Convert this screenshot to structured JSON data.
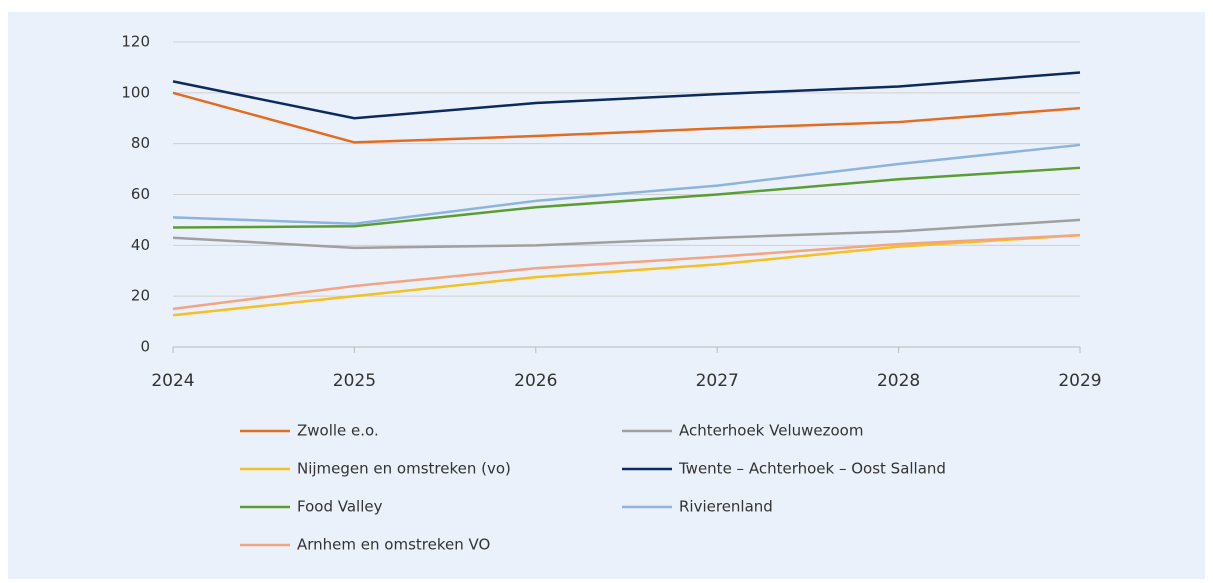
{
  "chart_data": {
    "type": "line",
    "categories": [
      "2024",
      "2025",
      "2026",
      "2027",
      "2028",
      "2029"
    ],
    "ylim": [
      0,
      120
    ],
    "yticks": [
      0,
      20,
      40,
      60,
      80,
      100,
      120
    ],
    "grid": true,
    "series": [
      {
        "name": "Zwolle e.o.",
        "color": "#e36c1e",
        "values": [
          100,
          80.5,
          83,
          86,
          88.5,
          94
        ]
      },
      {
        "name": "Achterhoek Veluwezoom",
        "color": "#a0a0a0",
        "values": [
          43,
          39,
          40,
          43,
          45.5,
          50
        ]
      },
      {
        "name": "Nijmegen en omstreken (vo)",
        "color": "#f5c020",
        "values": [
          12.5,
          20,
          27.5,
          32.5,
          39.5,
          44
        ]
      },
      {
        "name": "Twente – Achterhoek – Oost Salland",
        "color": "#0c2a5e",
        "values": [
          104.5,
          90,
          96,
          99.5,
          102.5,
          108
        ]
      },
      {
        "name": "Food Valley",
        "color": "#5a9e32",
        "values": [
          47,
          47.5,
          55,
          60,
          66,
          70.5
        ]
      },
      {
        "name": "Rivierenland",
        "color": "#8db4dc",
        "values": [
          51,
          48.5,
          57.5,
          63.5,
          72,
          79.5
        ]
      },
      {
        "name": "Arnhem en omstreken VO",
        "color": "#f2a580",
        "values": [
          15,
          24,
          31,
          35.5,
          40.5,
          44
        ]
      }
    ]
  }
}
